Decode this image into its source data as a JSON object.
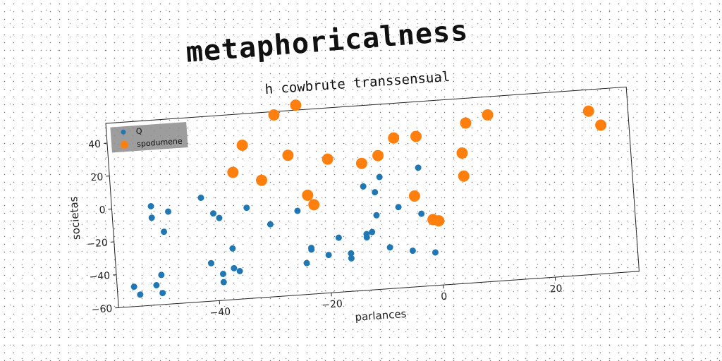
{
  "super_title": "metaphoricalness",
  "chart_data": {
    "type": "scatter",
    "title": "h cowbrute transsensual",
    "xlabel": "parlances",
    "ylabel": "societas",
    "xlim": [
      -58,
      35
    ],
    "ylim": [
      -60,
      52
    ],
    "xticks": [
      -40,
      -20,
      0,
      20
    ],
    "yticks": [
      -60,
      -40,
      -20,
      0,
      20,
      40
    ],
    "grid": false,
    "legend": "top-left",
    "series": [
      {
        "name": "Q",
        "color": "#1f77b4",
        "points": [
          [
            -55,
            -48
          ],
          [
            -54,
            -53
          ],
          [
            -51,
            -48
          ],
          [
            -51,
            -7
          ],
          [
            -51,
            0
          ],
          [
            -50,
            -42
          ],
          [
            -50,
            -53
          ],
          [
            -49,
            -16
          ],
          [
            -48,
            -4
          ],
          [
            -42,
            3
          ],
          [
            -41,
            -37
          ],
          [
            -40,
            -7
          ],
          [
            -39,
            -44
          ],
          [
            -39,
            -49
          ],
          [
            -39,
            -10
          ],
          [
            -37,
            -41
          ],
          [
            -37,
            -29
          ],
          [
            -36,
            -43
          ],
          [
            -34,
            -5
          ],
          [
            -30,
            -16
          ],
          [
            -25,
            -9
          ],
          [
            -24,
            -41
          ],
          [
            -23,
            -33
          ],
          [
            -23,
            -32
          ],
          [
            -20,
            -37
          ],
          [
            -18,
            -27
          ],
          [
            -16,
            -37
          ],
          [
            -16,
            -40
          ],
          [
            -13,
            -28
          ],
          [
            -13,
            -26
          ],
          [
            -13,
            3
          ],
          [
            -12,
            -25
          ],
          [
            -11,
            -15
          ],
          [
            -11,
            -1
          ],
          [
            -10,
            8
          ],
          [
            -9,
            -35
          ],
          [
            -7,
            -11
          ],
          [
            -5,
            -38
          ],
          [
            -4,
            -6
          ],
          [
            -3,
            -16
          ],
          [
            -3,
            12
          ],
          [
            -1,
            -40
          ]
        ]
      },
      {
        "name": "spodumene",
        "color": "#ff7f0e",
        "points": [
          [
            -36,
            17
          ],
          [
            -34,
            33
          ],
          [
            -31,
            11
          ],
          [
            -28,
            50
          ],
          [
            -26,
            25
          ],
          [
            -24,
            55
          ],
          [
            -23,
            0
          ],
          [
            -22,
            -6
          ],
          [
            -19,
            21
          ],
          [
            -13,
            17
          ],
          [
            -10,
            21
          ],
          [
            -7,
            31
          ],
          [
            -4,
            -5
          ],
          [
            -3,
            31
          ],
          [
            -1,
            -20
          ],
          [
            0,
            -21
          ],
          [
            5,
            19
          ],
          [
            5,
            5
          ],
          [
            6,
            37
          ],
          [
            10,
            41
          ],
          [
            28,
            39
          ],
          [
            30,
            30
          ]
        ]
      }
    ]
  }
}
